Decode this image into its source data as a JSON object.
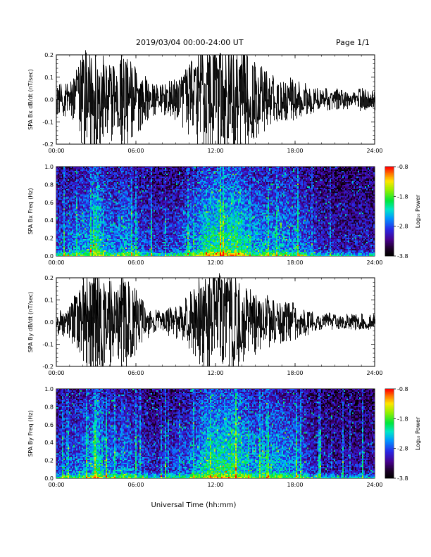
{
  "header": {
    "title": "2019/03/04  00:00-24:00 UT",
    "page": "Page 1/1"
  },
  "xaxis_label": "Universal Time (hh:mm)",
  "chart_data": [
    {
      "type": "line",
      "ylabel": "SPA Bx dB/dt (nT/sec)",
      "xlim": [
        0,
        24
      ],
      "xticks": [
        "00:00",
        "06:00",
        "12:00",
        "18:00",
        "24:00"
      ],
      "ylim": [
        -0.2,
        0.2
      ],
      "yticks": [
        "-0.2",
        "-0.1",
        "0.0",
        "0.1",
        "0.2"
      ],
      "color": "#000000",
      "envelope": {
        "x": [
          0,
          1,
          1.5,
          2,
          2.5,
          3,
          3.5,
          4,
          4.5,
          5,
          5.5,
          6,
          6.5,
          7,
          7.5,
          8,
          8.5,
          9,
          9.5,
          10,
          10.5,
          11,
          11.5,
          12,
          12.5,
          13,
          13.5,
          14,
          14.5,
          15,
          15.5,
          16,
          16.5,
          17,
          17.5,
          18,
          18.5,
          19,
          19.5,
          20,
          20.5,
          21,
          21.5,
          22,
          22.5,
          23,
          23.5,
          24
        ],
        "amplitude": [
          0.05,
          0.06,
          0.12,
          0.2,
          0.2,
          0.2,
          0.15,
          0.17,
          0.12,
          0.2,
          0.15,
          0.12,
          0.09,
          0.06,
          0.05,
          0.05,
          0.06,
          0.07,
          0.1,
          0.12,
          0.15,
          0.2,
          0.2,
          0.2,
          0.2,
          0.2,
          0.2,
          0.2,
          0.15,
          0.13,
          0.12,
          0.09,
          0.08,
          0.07,
          0.08,
          0.07,
          0.06,
          0.05,
          0.04,
          0.035,
          0.04,
          0.035,
          0.035,
          0.035,
          0.035,
          0.04,
          0.035,
          0.035
        ]
      }
    },
    {
      "type": "heatmap",
      "ylabel": "SPA Bx Freq (Hz)",
      "xlim": [
        0,
        24
      ],
      "xticks": [
        "00:00",
        "06:00",
        "12:00",
        "18:00",
        "24:00"
      ],
      "ylim": [
        0,
        1.0
      ],
      "yticks": [
        "0.0",
        "0.2",
        "0.4",
        "0.6",
        "0.8",
        "1.0"
      ],
      "colorbar": {
        "label": "Log₁₀ Power",
        "range": [
          -3.8,
          -0.8
        ],
        "ticks": [
          "-0.8",
          "-1.8",
          "-2.8",
          "-3.8"
        ]
      },
      "activity": {
        "x": [
          0,
          1,
          1.5,
          2,
          2.5,
          3,
          3.5,
          4,
          4.5,
          5,
          5.5,
          6,
          6.5,
          7,
          7.5,
          8,
          8.5,
          9,
          9.5,
          10,
          10.5,
          11,
          11.5,
          12,
          12.5,
          13,
          13.5,
          14,
          14.5,
          15,
          15.5,
          16,
          16.5,
          17,
          17.5,
          18,
          18.5,
          19,
          19.5,
          20,
          20.5,
          21,
          21.5,
          22,
          22.5,
          23,
          23.5,
          24
        ],
        "level": [
          0.45,
          0.5,
          0.55,
          0.6,
          0.6,
          0.85,
          0.55,
          0.6,
          0.5,
          0.65,
          0.55,
          0.5,
          0.45,
          0.4,
          0.38,
          0.4,
          0.42,
          0.45,
          0.5,
          0.55,
          0.6,
          0.75,
          0.8,
          0.8,
          0.8,
          0.82,
          0.85,
          0.75,
          0.65,
          0.6,
          0.62,
          0.6,
          0.62,
          0.6,
          0.58,
          0.55,
          0.5,
          0.45,
          0.4,
          0.35,
          0.35,
          0.33,
          0.32,
          0.32,
          0.32,
          0.35,
          0.32,
          0.3
        ]
      }
    },
    {
      "type": "line",
      "ylabel": "SPA By dB/dt (nT/sec)",
      "xlim": [
        0,
        24
      ],
      "xticks": [
        "00:00",
        "06:00",
        "12:00",
        "18:00",
        "24:00"
      ],
      "ylim": [
        -0.2,
        0.2
      ],
      "yticks": [
        "-0.2",
        "-0.1",
        "0.0",
        "0.1",
        "0.2"
      ],
      "color": "#000000",
      "envelope": {
        "x": [
          0,
          1,
          1.5,
          2,
          2.5,
          3,
          3.5,
          4,
          4.5,
          5,
          5.5,
          6,
          6.5,
          7,
          7.5,
          8,
          8.5,
          9,
          9.5,
          10,
          10.5,
          11,
          11.5,
          12,
          12.5,
          13,
          13.5,
          14,
          14.5,
          15,
          15.5,
          16,
          16.5,
          17,
          17.5,
          18,
          18.5,
          19,
          19.5,
          20,
          20.5,
          21,
          21.5,
          22,
          22.5,
          23,
          23.5,
          24
        ],
        "amplitude": [
          0.04,
          0.06,
          0.1,
          0.16,
          0.2,
          0.2,
          0.15,
          0.16,
          0.12,
          0.18,
          0.14,
          0.11,
          0.08,
          0.05,
          0.04,
          0.04,
          0.05,
          0.06,
          0.08,
          0.1,
          0.13,
          0.18,
          0.2,
          0.2,
          0.2,
          0.2,
          0.18,
          0.16,
          0.13,
          0.11,
          0.1,
          0.09,
          0.08,
          0.07,
          0.07,
          0.06,
          0.05,
          0.04,
          0.03,
          0.025,
          0.03,
          0.025,
          0.025,
          0.025,
          0.025,
          0.03,
          0.025,
          0.025
        ]
      }
    },
    {
      "type": "heatmap",
      "ylabel": "SPA By Freq (Hz)",
      "xlim": [
        0,
        24
      ],
      "xticks": [
        "00:00",
        "06:00",
        "12:00",
        "18:00",
        "24:00"
      ],
      "ylim": [
        0,
        1.0
      ],
      "yticks": [
        "0.0",
        "0.2",
        "0.4",
        "0.6",
        "0.8",
        "1.0"
      ],
      "colorbar": {
        "label": "Log₁₀ Power",
        "range": [
          -3.8,
          -0.8
        ],
        "ticks": [
          "-0.8",
          "-1.8",
          "-2.8",
          "-3.8"
        ]
      },
      "activity": {
        "x": [
          0,
          1,
          1.5,
          2,
          2.5,
          3,
          3.5,
          4,
          4.5,
          5,
          5.5,
          6,
          6.5,
          7,
          7.5,
          8,
          8.5,
          9,
          9.5,
          10,
          10.5,
          11,
          11.5,
          12,
          12.5,
          13,
          13.5,
          14,
          14.5,
          15,
          15.5,
          16,
          16.5,
          17,
          17.5,
          18,
          18.5,
          19,
          19.5,
          20,
          20.5,
          21,
          21.5,
          22,
          22.5,
          23,
          23.5,
          24
        ],
        "level": [
          0.42,
          0.48,
          0.52,
          0.58,
          0.6,
          0.85,
          0.55,
          0.58,
          0.5,
          0.62,
          0.52,
          0.48,
          0.43,
          0.38,
          0.35,
          0.38,
          0.4,
          0.43,
          0.48,
          0.52,
          0.58,
          0.72,
          0.78,
          0.8,
          0.8,
          0.82,
          0.82,
          0.72,
          0.62,
          0.6,
          0.62,
          0.62,
          0.64,
          0.6,
          0.58,
          0.55,
          0.5,
          0.42,
          0.38,
          0.33,
          0.33,
          0.3,
          0.3,
          0.3,
          0.3,
          0.33,
          0.3,
          0.28
        ]
      }
    }
  ]
}
